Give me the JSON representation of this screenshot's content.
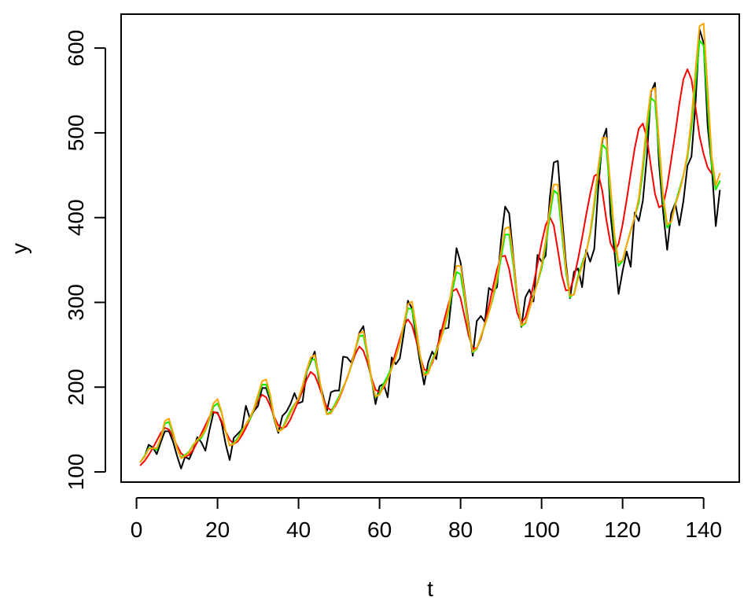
{
  "chart_data": {
    "type": "line",
    "xlabel": "t",
    "ylabel": "y",
    "xlim": [
      -3.8,
      148.8
    ],
    "ylim": [
      88,
      640
    ],
    "x_ticks": [
      0,
      20,
      40,
      60,
      80,
      100,
      120,
      140
    ],
    "y_ticks": [
      100,
      200,
      300,
      400,
      500,
      600
    ],
    "grid": false,
    "legend": "none",
    "series": [
      {
        "color": "#000000",
        "values": [
          112,
          118,
          132,
          129,
          121,
          135,
          148,
          148,
          136,
          119,
          104,
          118,
          115,
          126,
          141,
          135,
          125,
          149,
          170,
          170,
          158,
          133,
          114,
          140,
          145,
          150,
          178,
          163,
          172,
          178,
          199,
          199,
          184,
          162,
          146,
          166,
          171,
          180,
          193,
          181,
          183,
          218,
          230,
          242,
          209,
          191,
          172,
          194,
          196,
          196,
          236,
          235,
          229,
          243,
          264,
          272,
          237,
          211,
          180,
          201,
          204,
          188,
          235,
          227,
          234,
          264,
          302,
          293,
          259,
          229,
          203,
          229,
          242,
          233,
          267,
          269,
          270,
          315,
          364,
          347,
          312,
          274,
          237,
          278,
          284,
          277,
          317,
          313,
          318,
          374,
          413,
          405,
          355,
          306,
          271,
          306,
          315,
          301,
          356,
          348,
          355,
          422,
          465,
          467,
          404,
          347,
          305,
          336,
          340,
          318,
          362,
          348,
          363,
          435,
          491,
          505,
          404,
          359,
          310,
          337,
          360,
          342,
          406,
          396,
          420,
          472,
          548,
          559,
          463,
          407,
          362,
          405,
          417,
          391,
          419,
          461,
          472,
          535,
          622,
          606,
          508,
          461,
          390,
          432
        ]
      },
      {
        "color": "#ff0000",
        "values": [
          108,
          113,
          120,
          128,
          137,
          146,
          152,
          150,
          142,
          131,
          122,
          118,
          120,
          126,
          135,
          145,
          155,
          165,
          171,
          169,
          160,
          148,
          138,
          133,
          136,
          143,
          152,
          162,
          173,
          184,
          191,
          188,
          178,
          165,
          155,
          151,
          154,
          162,
          173,
          184,
          196,
          209,
          218,
          214,
          202,
          188,
          176,
          173,
          177,
          186,
          198,
          211,
          225,
          239,
          248,
          243,
          229,
          211,
          197,
          194,
          199,
          210,
          225,
          241,
          257,
          273,
          280,
          273,
          256,
          236,
          221,
          219,
          228,
          243,
          261,
          280,
          298,
          313,
          316,
          305,
          283,
          261,
          246,
          246,
          257,
          275,
          296,
          318,
          339,
          354,
          355,
          339,
          312,
          287,
          276,
          282,
          299,
          321,
          345,
          370,
          391,
          401,
          391,
          362,
          332,
          314,
          315,
          329,
          351,
          376,
          403,
          428,
          449,
          452,
          431,
          397,
          370,
          360,
          369,
          392,
          421,
          452,
          482,
          505,
          511,
          494,
          460,
          428,
          412,
          415,
          437,
          468,
          500,
          534,
          563,
          575,
          563,
          530,
          496,
          475,
          459,
          452
        ]
      },
      {
        "color": "#00ee00",
        "values": [
          112,
          119,
          128,
          128,
          126,
          140,
          157,
          159,
          145,
          128,
          117,
          120,
          124,
          132,
          137,
          140,
          149,
          162,
          177,
          181,
          170,
          148,
          131,
          134,
          140,
          149,
          156,
          162,
          174,
          188,
          203,
          203,
          188,
          163,
          148,
          151,
          162,
          172,
          180,
          186,
          201,
          218,
          232,
          233,
          212,
          187,
          168,
          171,
          180,
          189,
          200,
          210,
          225,
          244,
          260,
          261,
          238,
          208,
          188,
          193,
          204,
          213,
          224,
          235,
          251,
          273,
          293,
          292,
          266,
          236,
          215,
          219,
          232,
          243,
          255,
          270,
          289,
          315,
          336,
          333,
          303,
          267,
          241,
          245,
          259,
          273,
          288,
          305,
          325,
          353,
          380,
          380,
          345,
          302,
          272,
          275,
          292,
          309,
          323,
          340,
          366,
          401,
          432,
          428,
          382,
          336,
          306,
          310,
          331,
          346,
          359,
          380,
          413,
          452,
          486,
          481,
          426,
          373,
          343,
          349,
          368,
          385,
          401,
          418,
          455,
          502,
          541,
          537,
          477,
          419,
          388,
          395,
          416,
          433,
          450,
          471,
          507,
          558,
          609,
          603,
          531,
          461,
          433,
          443
        ]
      },
      {
        "color": "#ffa500",
        "values": [
          112,
          118,
          127,
          128,
          128,
          140,
          160,
          163,
          147,
          128,
          116,
          119,
          123,
          131,
          138,
          142,
          150,
          164,
          181,
          186,
          171,
          148,
          131,
          133,
          138,
          147,
          156,
          164,
          175,
          191,
          207,
          209,
          191,
          164,
          148,
          150,
          160,
          169,
          179,
          187,
          202,
          220,
          235,
          238,
          215,
          186,
          168,
          169,
          178,
          187,
          199,
          210,
          226,
          245,
          263,
          266,
          242,
          210,
          189,
          191,
          201,
          209,
          222,
          236,
          252,
          275,
          298,
          301,
          272,
          238,
          214,
          216,
          230,
          241,
          255,
          272,
          293,
          322,
          343,
          343,
          310,
          270,
          242,
          246,
          260,
          274,
          288,
          307,
          330,
          360,
          387,
          389,
          352,
          306,
          273,
          276,
          292,
          307,
          324,
          344,
          372,
          410,
          439,
          439,
          391,
          341,
          308,
          309,
          328,
          343,
          358,
          383,
          419,
          460,
          494,
          494,
          437,
          380,
          347,
          350,
          368,
          384,
          401,
          423,
          464,
          513,
          550,
          553,
          489,
          426,
          392,
          395,
          415,
          430,
          449,
          475,
          517,
          574,
          626,
          629,
          551,
          472,
          438,
          452
        ]
      }
    ]
  }
}
